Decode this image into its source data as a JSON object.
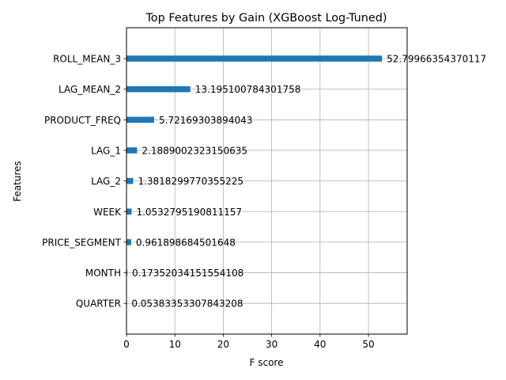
{
  "chart_data": {
    "type": "bar",
    "orientation": "horizontal",
    "title": "Top Features by Gain (XGBoost Log-Tuned)",
    "xlabel": "F score",
    "ylabel": "Features",
    "categories": [
      "ROLL_MEAN_3",
      "LAG_MEAN_2",
      "PRODUCT_FREQ",
      "LAG_1",
      "LAG_2",
      "WEEK",
      "PRICE_SEGMENT",
      "MONTH",
      "QUARTER"
    ],
    "values": [
      52.79966354370117,
      13.195100784301758,
      5.72169303894043,
      2.1889002323150635,
      1.3818299770355225,
      1.0532795190811157,
      0.961898684501648,
      0.17352034151554108,
      0.05383353307843208
    ],
    "value_labels": [
      "52.79966354370117",
      "13.195100784301758",
      "5.72169303894043",
      "2.1889002323150635",
      "1.3818299770355225",
      "1.0532795190811157",
      "0.961898684501648",
      "0.17352034151554108",
      "0.05383353307843208"
    ],
    "xlim": [
      0,
      58
    ],
    "xticks": [
      0,
      10,
      20,
      30,
      40,
      50
    ],
    "xtick_labels": [
      "0",
      "10",
      "20",
      "30",
      "40",
      "50"
    ],
    "grid": true,
    "bar_color": "#1f77b4",
    "grid_color": "#b0b0b0"
  }
}
